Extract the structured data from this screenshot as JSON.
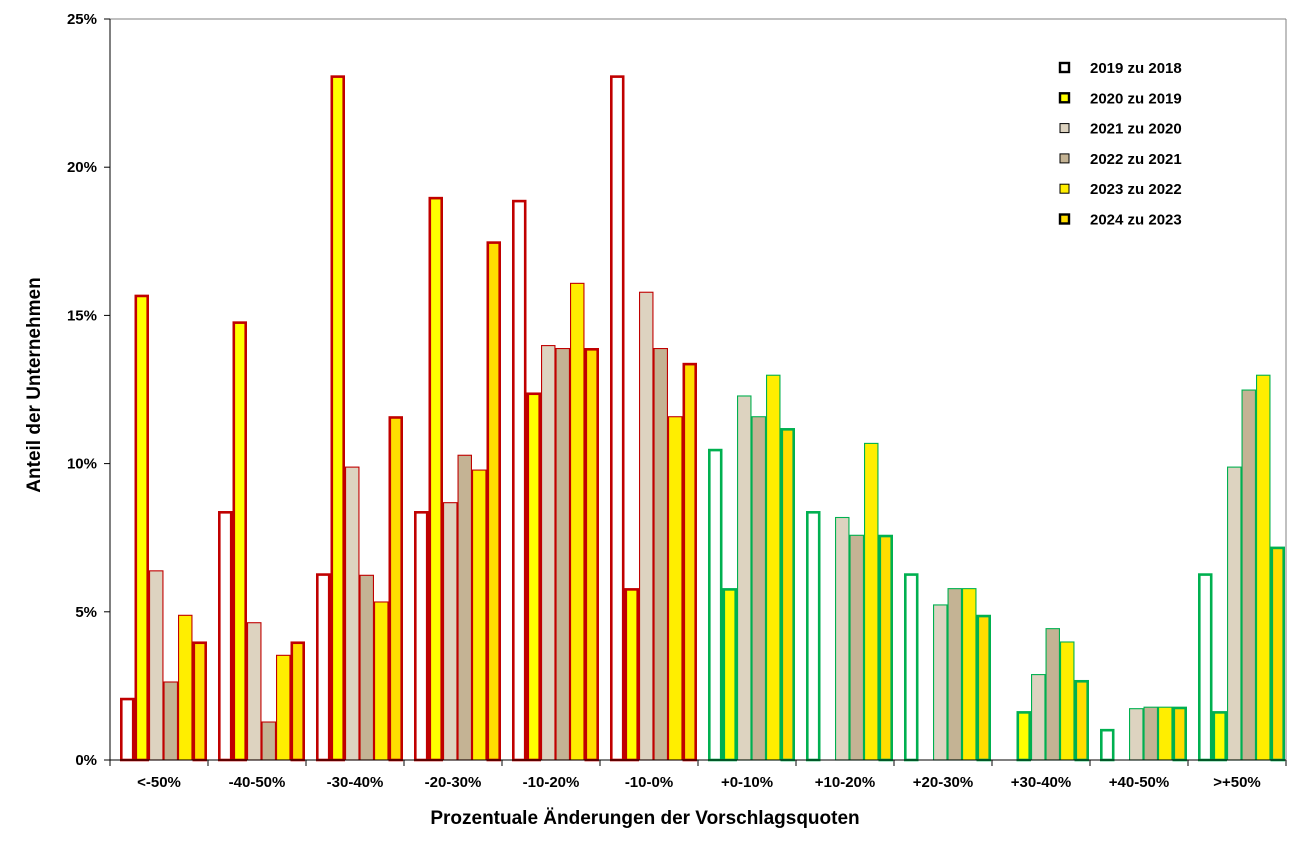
{
  "chart_data": {
    "type": "bar",
    "title": "",
    "xlabel": "Prozentuale Änderungen der Vorschlagsquoten",
    "ylabel": "Anteil der Unternehmen",
    "ylim": [
      0,
      25
    ],
    "yticks": [
      0,
      5,
      10,
      15,
      20,
      25
    ],
    "ytick_labels": [
      "0%",
      "5%",
      "10%",
      "15%",
      "20%",
      "25%"
    ],
    "categories": [
      "<-50%",
      "-40-50%",
      "-30-40%",
      "-20-30%",
      "-10-20%",
      "-10-0%",
      "+0-10%",
      "+10-20%",
      "+20-30%",
      "+30-40%",
      "+40-50%",
      ">+50%"
    ],
    "negative_outline_color": "#c00000",
    "positive_outline_color": "#00b050",
    "legend_position": "top-right",
    "series": [
      {
        "name": "2019 zu 2018",
        "fill": "#ffffff",
        "thick": true,
        "values": [
          2.1,
          8.4,
          6.3,
          8.4,
          18.9,
          23.1,
          10.5,
          8.4,
          6.3,
          0,
          1.05,
          6.3
        ]
      },
      {
        "name": "2020 zu 2019",
        "fill": "#ffff00",
        "thick": true,
        "values": [
          15.7,
          14.8,
          23.1,
          19.0,
          12.4,
          5.8,
          5.8,
          0,
          0,
          1.65,
          0,
          1.65
        ]
      },
      {
        "name": "2021 zu 2020",
        "fill": "#ddd3c0",
        "thick": false,
        "values": [
          6.4,
          4.65,
          9.9,
          8.7,
          14.0,
          15.8,
          12.3,
          8.2,
          5.25,
          2.9,
          1.75,
          9.9
        ]
      },
      {
        "name": "2022 zu 2021",
        "fill": "#c4b394",
        "thick": false,
        "values": [
          2.65,
          1.3,
          6.25,
          10.3,
          13.9,
          13.9,
          11.6,
          7.6,
          5.8,
          4.45,
          1.8,
          12.5
        ]
      },
      {
        "name": "2023 zu 2022",
        "fill": "#ffee00",
        "thick": false,
        "values": [
          4.9,
          3.55,
          5.35,
          9.8,
          16.1,
          11.6,
          13.0,
          10.7,
          5.8,
          4.0,
          1.8,
          13.0
        ]
      },
      {
        "name": "2024 zu 2023",
        "fill": "#ffdd00",
        "thick": true,
        "values": [
          4.0,
          4.0,
          11.6,
          17.5,
          13.9,
          13.4,
          11.2,
          7.6,
          4.9,
          2.7,
          1.8,
          7.2
        ]
      }
    ]
  }
}
